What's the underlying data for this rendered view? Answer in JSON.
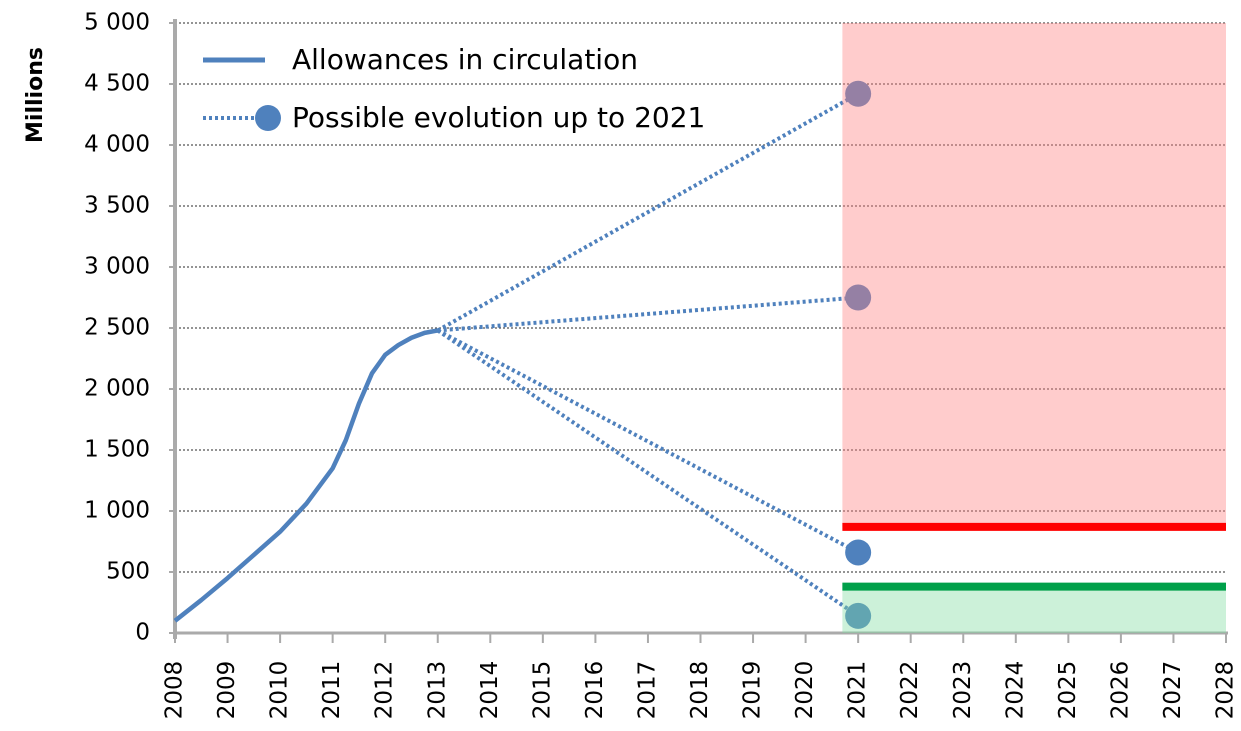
{
  "chart_data": {
    "type": "line",
    "y_label": "Millions",
    "xlim": [
      2008,
      2028
    ],
    "xticks": [
      2008,
      2009,
      2010,
      2011,
      2012,
      2013,
      2014,
      2015,
      2016,
      2017,
      2018,
      2019,
      2020,
      2021,
      2022,
      2023,
      2024,
      2025,
      2026,
      2027,
      2028
    ],
    "ylim": [
      0,
      5000
    ],
    "yticks": [
      0,
      500,
      {
        "value": 1000,
        "label": "1 000"
      },
      {
        "value": 1500,
        "label": "1 500"
      },
      {
        "value": 2000,
        "label": "2 000"
      },
      {
        "value": 2500,
        "label": "2 500"
      },
      {
        "value": 3000,
        "label": "3 000"
      },
      {
        "value": 3500,
        "label": "3 500"
      },
      {
        "value": 4000,
        "label": "4 000"
      },
      {
        "value": 4500,
        "label": "4 500"
      },
      {
        "value": 5000,
        "label": "5 000"
      }
    ],
    "grid": true,
    "legend": "upper left",
    "series": [
      {
        "name": "Allowances in circulation",
        "color": "#4f81bd",
        "x": [
          2008,
          2008.5,
          2009,
          2009.5,
          2010,
          2010.5,
          2011,
          2011.25,
          2011.5,
          2011.75,
          2012,
          2012.25,
          2012.5,
          2012.75,
          2013
        ],
        "values": [
          100,
          270,
          450,
          640,
          830,
          1060,
          1350,
          1580,
          1880,
          2130,
          2280,
          2360,
          2420,
          2460,
          2480
        ]
      },
      {
        "name": "Possible evolution up to 2021",
        "color": "#4f81bd",
        "dotted": true,
        "x": [
          2013,
          2021
        ],
        "lines": [
          [
            2480,
            4420
          ],
          [
            2480,
            2750
          ],
          [
            2480,
            660
          ],
          [
            2480,
            140
          ]
        ]
      }
    ],
    "bands": [
      {
        "xlim": [
          2020.7,
          2028
        ],
        "ylim": [
          870,
          5000
        ],
        "color": "#ff8080"
      },
      {
        "xlim": [
          2020.7,
          2028
        ],
        "ylim": [
          0,
          410
        ],
        "color": "#7fdca0"
      }
    ],
    "hlines": [
      {
        "value": 870,
        "xlim": [
          2020.7,
          2028
        ],
        "color": "#ff0000"
      },
      {
        "value": 380,
        "xlim": [
          2020.7,
          2028
        ],
        "color": "#00a04a"
      }
    ]
  }
}
